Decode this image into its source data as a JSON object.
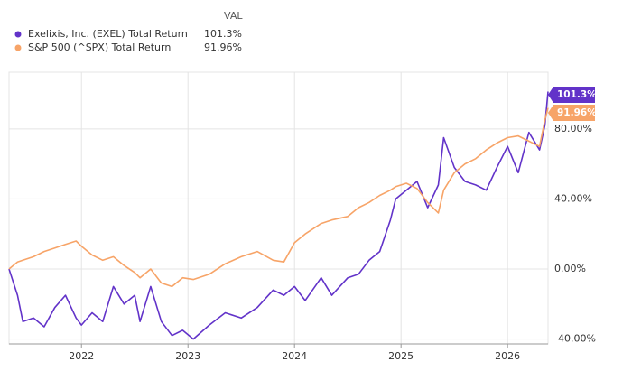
{
  "chart_data": {
    "type": "line",
    "value_header": "VAL",
    "x": [
      2021.32,
      2021.4,
      2021.45,
      2021.55,
      2021.65,
      2021.75,
      2021.85,
      2021.95,
      2022.0,
      2022.1,
      2022.2,
      2022.3,
      2022.4,
      2022.5,
      2022.55,
      2022.65,
      2022.75,
      2022.85,
      2022.95,
      2023.05,
      2023.2,
      2023.35,
      2023.5,
      2023.65,
      2023.8,
      2023.9,
      2024.0,
      2024.1,
      2024.25,
      2024.35,
      2024.5,
      2024.6,
      2024.7,
      2024.8,
      2024.9,
      2024.95,
      2025.05,
      2025.15,
      2025.25,
      2025.35,
      2025.4,
      2025.5,
      2025.6,
      2025.7,
      2025.8,
      2025.9,
      2026.0,
      2026.1,
      2026.2,
      2026.3,
      2026.35,
      2026.38
    ],
    "series": [
      {
        "name": "Exelixis, Inc. (EXEL) Total Return",
        "color": "#6233c9",
        "end_label": "101.3%",
        "values": [
          0,
          -15,
          -30,
          -28,
          -33,
          -22,
          -15,
          -28,
          -32,
          -25,
          -30,
          -10,
          -20,
          -15,
          -30,
          -10,
          -30,
          -38,
          -35,
          -40,
          -32,
          -25,
          -28,
          -22,
          -12,
          -15,
          -10,
          -18,
          -5,
          -15,
          -5,
          -3,
          5,
          10,
          28,
          40,
          45,
          50,
          35,
          48,
          75,
          58,
          50,
          48,
          45,
          58,
          70,
          55,
          78,
          68,
          82,
          101.3
        ]
      },
      {
        "name": "S&P 500 (^SPX) Total Return",
        "color": "#f7a468",
        "end_label": "91.96%",
        "values": [
          0,
          4,
          5,
          7,
          10,
          12,
          14,
          16,
          13,
          8,
          5,
          7,
          2,
          -2,
          -5,
          0,
          -8,
          -10,
          -5,
          -6,
          -3,
          3,
          7,
          10,
          5,
          4,
          15,
          20,
          26,
          28,
          30,
          35,
          38,
          42,
          45,
          47,
          49,
          46,
          38,
          32,
          45,
          55,
          60,
          63,
          68,
          72,
          75,
          76,
          73,
          70,
          85,
          91.96
        ]
      }
    ],
    "xlim": [
      2021.32,
      2026.38
    ],
    "xticks": [
      2022,
      2023,
      2024,
      2025,
      2026
    ],
    "ylim": [
      -42.8,
      112.4
    ],
    "yticks": [
      {
        "value": -40,
        "label": "-40.00%"
      },
      {
        "value": 0,
        "label": "0.00%"
      },
      {
        "value": 40,
        "label": "40.00%"
      },
      {
        "value": 80,
        "label": "80.00%"
      }
    ],
    "grid": true
  }
}
